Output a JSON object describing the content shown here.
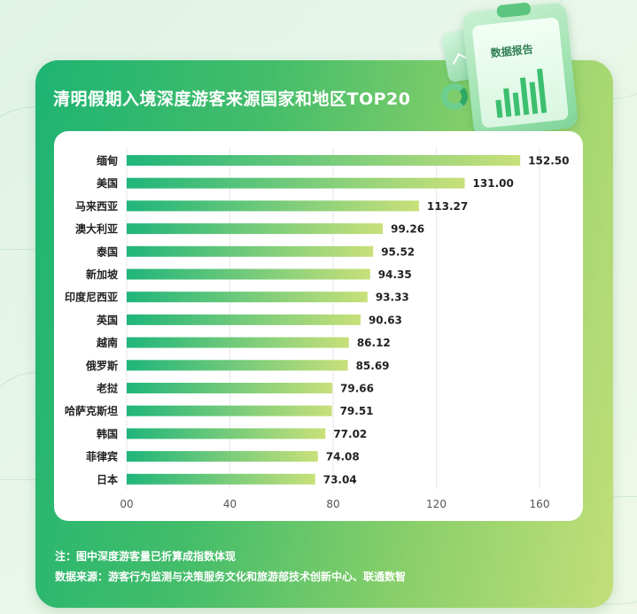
{
  "title": "清明假期入境深度游客来源国家和地区TOP20",
  "illustration": {
    "label": "数据报告"
  },
  "notes": {
    "note1": "注：图中深度游客量已折算成指数体现",
    "note2": "数据来源：游客行为监测与决策服务文化和旅游部技术创新中心、联通数智"
  },
  "colors": {
    "bar_start": "#1fb57a",
    "bar_end": "#c8e07a",
    "panel": "#43bd6a"
  },
  "chart_data": {
    "type": "bar",
    "orientation": "horizontal",
    "title": "清明假期入境深度游客来源国家和地区TOP20",
    "categories": [
      "缅甸",
      "美国",
      "马来西亚",
      "澳大利亚",
      "泰国",
      "新加坡",
      "印度尼西亚",
      "英国",
      "越南",
      "俄罗斯",
      "老挝",
      "哈萨克斯坦",
      "韩国",
      "菲律宾",
      "日本"
    ],
    "values": [
      152.5,
      131.0,
      113.27,
      99.26,
      95.52,
      94.35,
      93.33,
      90.63,
      86.12,
      85.69,
      79.66,
      79.51,
      77.02,
      74.08,
      73.04
    ],
    "value_labels": [
      "152.50",
      "131.00",
      "113.27",
      "99.26",
      "95.52",
      "94.35",
      "93.33",
      "90.63",
      "86.12",
      "85.69",
      "79.66",
      "79.51",
      "77.02",
      "74.08",
      "73.04"
    ],
    "xticks": [
      "00",
      "40",
      "80",
      "120",
      "160"
    ],
    "xlim": [
      0,
      160
    ],
    "grid": true
  }
}
